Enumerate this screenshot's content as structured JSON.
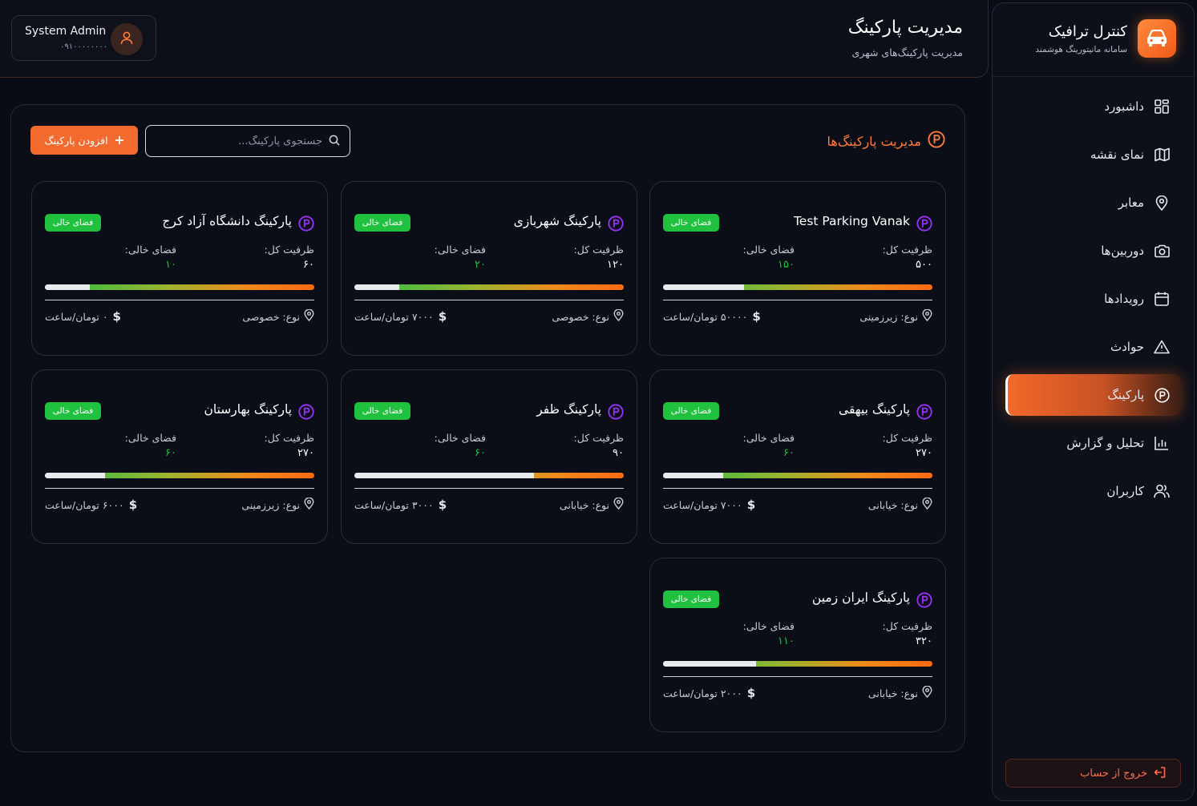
{
  "app": {
    "brand_title": "کنترل ترافیک",
    "brand_subtitle": "سامانه مانیتورینگ هوشمند"
  },
  "header": {
    "title": "مدیریت پارکینگ",
    "subtitle": "مدیریت پارکینگ‌های شهری",
    "user_name": "System Admin",
    "user_phone": "۰۹۱۰۰۰۰۰۰۰۰"
  },
  "sidebar": {
    "items": [
      {
        "label": "داشبورد",
        "icon": "dashboard-icon",
        "active": false
      },
      {
        "label": "نمای نقشه",
        "icon": "map-icon",
        "active": false
      },
      {
        "label": "معابر",
        "icon": "location-pin-icon",
        "active": false
      },
      {
        "label": "دوربین‌ها",
        "icon": "camera-icon",
        "active": false
      },
      {
        "label": "رویدادها",
        "icon": "calendar-icon",
        "active": false
      },
      {
        "label": "حوادث",
        "icon": "warning-icon",
        "active": false
      },
      {
        "label": "پارکینگ",
        "icon": "parking-icon",
        "active": true
      },
      {
        "label": "تحلیل و گزارش",
        "icon": "chart-icon",
        "active": false
      },
      {
        "label": "کاربران",
        "icon": "users-icon",
        "active": false
      }
    ],
    "logout_label": "خروج از حساب"
  },
  "main": {
    "section_title": "مدیریت پارکینگ‌ها",
    "search_placeholder": "جستجوی پارکینگ...",
    "add_button": "افزودن پارکینگ",
    "labels": {
      "total_capacity": "ظرفیت کل:",
      "free_space": "فضای خالی:",
      "badge": "فضای خالی"
    },
    "cards": [
      {
        "name": "Test Parking Vanak",
        "total": "۵۰۰",
        "free": "۱۵۰",
        "used_fraction": 0.3,
        "type": "نوع: زیرزمینی",
        "price": "۵۰۰۰۰ تومان/ساعت"
      },
      {
        "name": "پارکینگ شهربازی",
        "total": "۱۲۰",
        "free": "۲۰",
        "used_fraction": 0.167,
        "type": "نوع: خصوصی",
        "price": "۷۰۰۰ تومان/ساعت"
      },
      {
        "name": "پارکینگ دانشگاه آزاد کرج",
        "total": "۶۰",
        "free": "۱۰",
        "used_fraction": 0.167,
        "type": "نوع: خصوصی",
        "price": "۰ تومان/ساعت"
      },
      {
        "name": "پارکینگ بیهقی",
        "total": "۲۷۰",
        "free": "۶۰",
        "used_fraction": 0.222,
        "type": "نوع: خیابانی",
        "price": "۷۰۰۰ تومان/ساعت"
      },
      {
        "name": "پارکینگ ظفر",
        "total": "۹۰",
        "free": "۶۰",
        "used_fraction": 0.667,
        "type": "نوع: خیابانی",
        "price": "۳۰۰۰ تومان/ساعت"
      },
      {
        "name": "پارکینگ بهارستان",
        "total": "۲۷۰",
        "free": "۶۰",
        "used_fraction": 0.222,
        "type": "نوع: زیرزمینی",
        "price": "۶۰۰۰ تومان/ساعت"
      },
      {
        "name": "پارکینگ ایران زمین",
        "total": "۳۲۰",
        "free": "۱۱۰",
        "used_fraction": 0.344,
        "type": "نوع: خیابانی",
        "price": "۲۰۰۰ تومان/ساعت"
      }
    ]
  },
  "colors": {
    "accent": "#f26a2e",
    "success": "#1fc13f",
    "parking_icon": "#9b30ff"
  }
}
